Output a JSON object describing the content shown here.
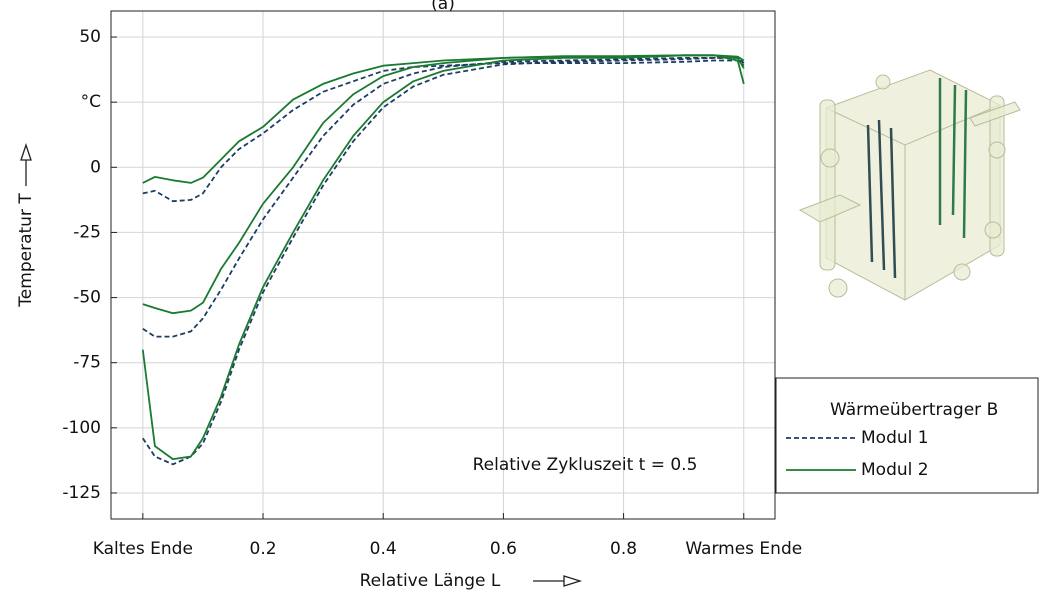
{
  "chart_data": {
    "type": "line",
    "title": "(a)",
    "x_label": "Relative Länge L",
    "y_label": "Temperatur T",
    "annotation": "Relative Zykluszeit t = 0.5",
    "legend_title": "Wärmeübertrager B",
    "grid": true,
    "xlim": [
      -0.053,
      1.052
    ],
    "ylim": [
      -135,
      60
    ],
    "xticks": [
      {
        "value": 0,
        "label": "Kaltes Ende"
      },
      0.2,
      0.4,
      0.6,
      0.8,
      {
        "value": 1,
        "label": "Warmes Ende"
      }
    ],
    "yticks": [
      50,
      {
        "value": 25,
        "label": "°C"
      },
      0,
      -25,
      -50,
      -75,
      -100,
      -125
    ],
    "x": [
      0,
      0.02,
      0.05,
      0.08,
      0.1,
      0.13,
      0.16,
      0.2,
      0.25,
      0.3,
      0.35,
      0.4,
      0.45,
      0.5,
      0.6,
      0.7,
      0.8,
      0.9,
      0.95,
      0.99,
      1.0
    ],
    "series": [
      {
        "name": "Modul 1",
        "color": "#1d3d63",
        "dashed": true,
        "curves": [
          [
            -10,
            -9,
            -13,
            -12.5,
            -10,
            0,
            7,
            13,
            22,
            29,
            33,
            37,
            38.5,
            39,
            40,
            40,
            40,
            40.5,
            41,
            41,
            39
          ],
          [
            -62,
            -65,
            -65,
            -63,
            -58,
            -47,
            -35,
            -20,
            -4,
            12,
            24,
            32,
            36,
            38.5,
            40.5,
            41,
            41.5,
            42,
            42,
            42,
            40
          ],
          [
            -104,
            -111,
            -114,
            -111,
            -106,
            -90,
            -70,
            -48,
            -27,
            -7,
            10,
            23,
            31,
            35.5,
            39.5,
            40.5,
            41,
            41.5,
            42,
            42,
            40
          ]
        ]
      },
      {
        "name": "Modul 2",
        "color": "#1a7a30",
        "dashed": false,
        "curves": [
          [
            -6,
            -3.7,
            -5,
            -6,
            -4,
            3,
            10,
            15.5,
            26,
            32,
            36,
            39,
            40,
            41,
            42,
            42.7,
            42.7,
            43,
            43,
            41,
            32
          ],
          [
            -52.5,
            -54,
            -56,
            -55,
            -52,
            -39,
            -29,
            -14,
            0,
            17,
            28,
            35,
            38.5,
            40,
            42,
            42.5,
            42.5,
            43,
            43,
            42.5,
            41
          ],
          [
            -70,
            -107,
            -112,
            -111,
            -104,
            -88,
            -68,
            -46,
            -25,
            -5,
            12,
            25,
            33,
            37,
            41,
            42,
            42,
            43,
            43,
            42,
            38
          ]
        ]
      }
    ]
  }
}
